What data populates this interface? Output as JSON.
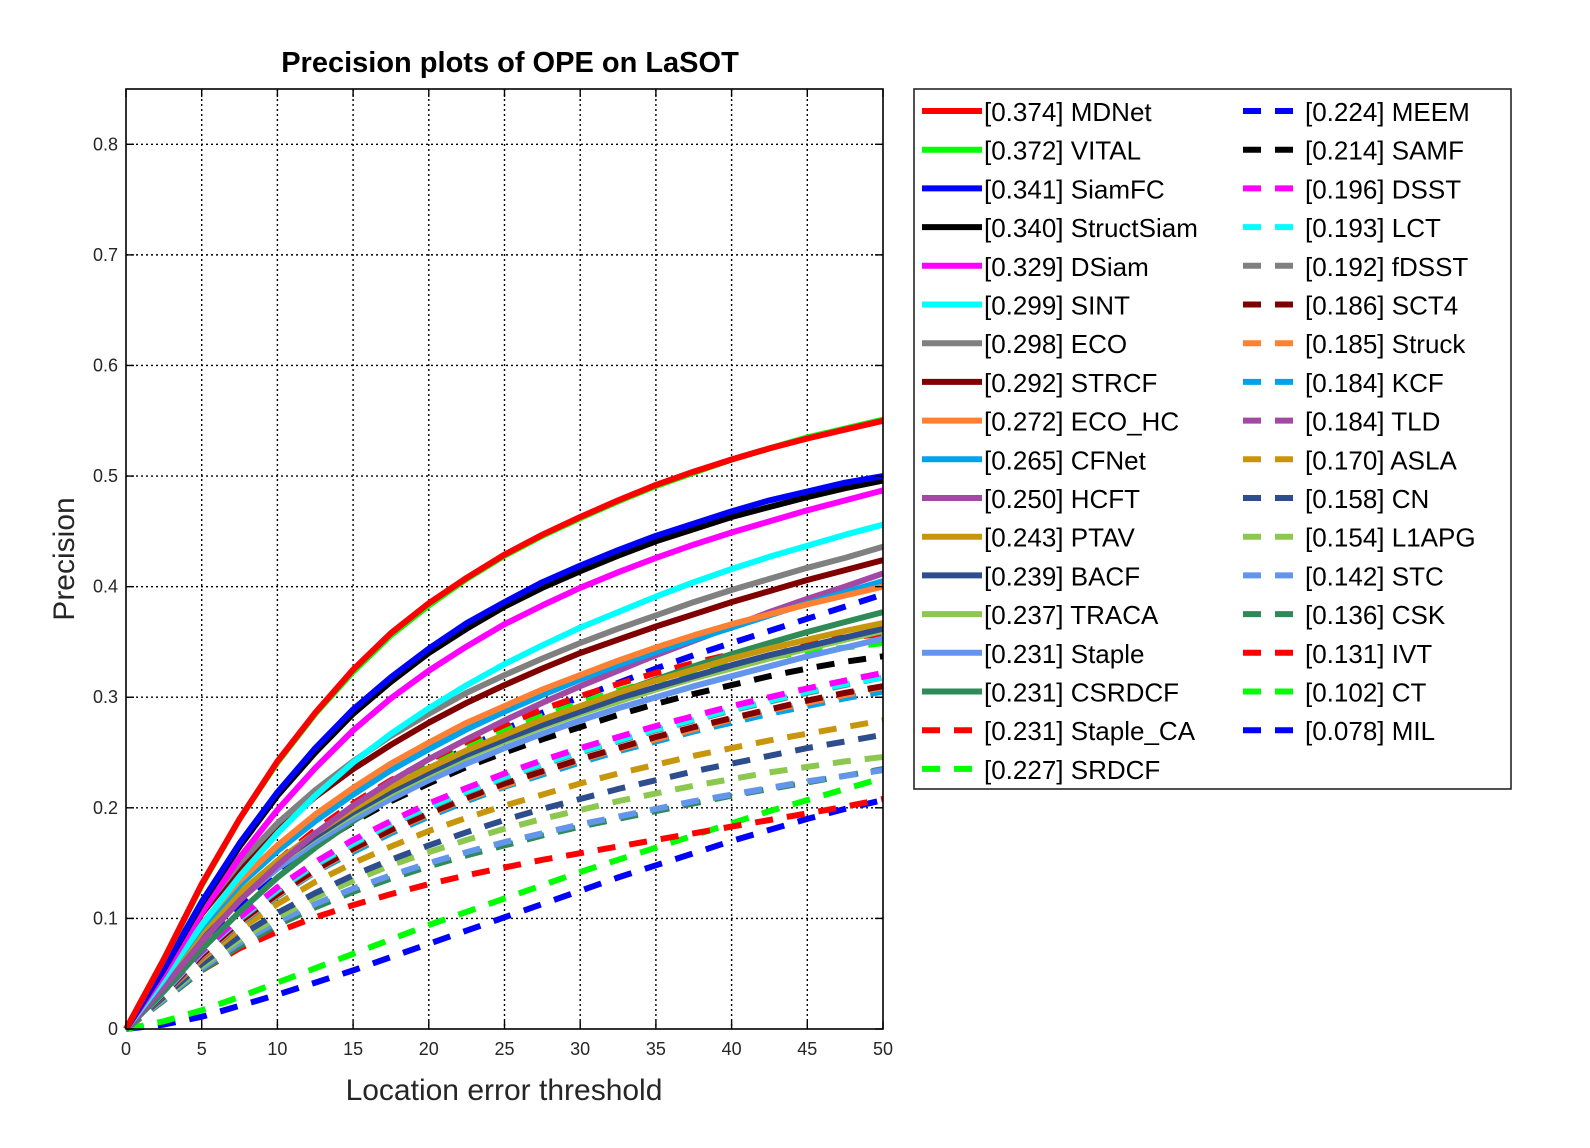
{
  "chart_data": {
    "type": "line",
    "title": "Precision plots of OPE on LaSOT",
    "xlabel": "Location error threshold",
    "ylabel": "Precision",
    "xlim": [
      0,
      50
    ],
    "ylim": [
      0,
      0.85
    ],
    "xticks": [
      "0",
      "5",
      "10",
      "15",
      "20",
      "25",
      "30",
      "35",
      "40",
      "45",
      "50"
    ],
    "yticks": [
      "0",
      "0.1",
      "0.2",
      "0.3",
      "0.4",
      "0.5",
      "0.6",
      "0.7",
      "0.8"
    ],
    "grid": true,
    "legend_placement": "outside-right",
    "x": [
      0,
      2.5,
      5,
      7.5,
      10,
      12.5,
      15,
      17.5,
      20,
      22.5,
      25,
      27.5,
      30,
      32.5,
      35,
      37.5,
      40,
      42.5,
      45,
      47.5,
      50
    ],
    "series": [
      {
        "name": "[0.374] MDNet",
        "color": "#ff0000",
        "dash": "solid",
        "values": [
          0,
          0.063,
          0.131,
          0.19,
          0.242,
          0.286,
          0.325,
          0.358,
          0.385,
          0.408,
          0.429,
          0.447,
          0.463,
          0.478,
          0.492,
          0.504,
          0.515,
          0.525,
          0.534,
          0.542,
          0.55
        ]
      },
      {
        "name": "[0.372] VITAL",
        "color": "#00ff00",
        "dash": "solid",
        "values": [
          0,
          0.063,
          0.13,
          0.19,
          0.241,
          0.285,
          0.323,
          0.356,
          0.383,
          0.407,
          0.428,
          0.446,
          0.462,
          0.477,
          0.491,
          0.503,
          0.515,
          0.525,
          0.535,
          0.543,
          0.551
        ]
      },
      {
        "name": "[0.341] SiamFC",
        "color": "#0000ff",
        "dash": "solid",
        "values": [
          0,
          0.055,
          0.115,
          0.168,
          0.214,
          0.254,
          0.289,
          0.318,
          0.344,
          0.367,
          0.386,
          0.404,
          0.419,
          0.433,
          0.446,
          0.457,
          0.468,
          0.478,
          0.486,
          0.494,
          0.5
        ]
      },
      {
        "name": "[0.340] StructSiam",
        "color": "#000000",
        "dash": "solid",
        "values": [
          0,
          0.054,
          0.113,
          0.165,
          0.211,
          0.25,
          0.285,
          0.314,
          0.34,
          0.362,
          0.382,
          0.399,
          0.414,
          0.428,
          0.441,
          0.452,
          0.463,
          0.472,
          0.481,
          0.489,
          0.496
        ]
      },
      {
        "name": "[0.329] DSiam",
        "color": "#ff00ff",
        "dash": "solid",
        "values": [
          0,
          0.05,
          0.105,
          0.155,
          0.198,
          0.236,
          0.27,
          0.299,
          0.324,
          0.346,
          0.366,
          0.383,
          0.399,
          0.413,
          0.426,
          0.438,
          0.449,
          0.459,
          0.469,
          0.478,
          0.487
        ]
      },
      {
        "name": "[0.299] SINT",
        "color": "#00ffff",
        "dash": "solid",
        "values": [
          0,
          0.045,
          0.094,
          0.138,
          0.177,
          0.211,
          0.241,
          0.267,
          0.29,
          0.311,
          0.33,
          0.347,
          0.363,
          0.377,
          0.391,
          0.404,
          0.416,
          0.427,
          0.437,
          0.447,
          0.456
        ]
      },
      {
        "name": "[0.298] ECO",
        "color": "#808080",
        "dash": "solid",
        "values": [
          0,
          0.053,
          0.107,
          0.15,
          0.186,
          0.216,
          0.242,
          0.265,
          0.285,
          0.304,
          0.32,
          0.335,
          0.349,
          0.362,
          0.374,
          0.386,
          0.397,
          0.407,
          0.417,
          0.426,
          0.436
        ]
      },
      {
        "name": "[0.292] STRCF",
        "color": "#800000",
        "dash": "solid",
        "values": [
          0,
          0.052,
          0.104,
          0.146,
          0.181,
          0.21,
          0.235,
          0.257,
          0.277,
          0.295,
          0.311,
          0.326,
          0.34,
          0.352,
          0.364,
          0.375,
          0.386,
          0.396,
          0.406,
          0.415,
          0.424
        ]
      },
      {
        "name": "[0.272] ECO_HC",
        "color": "#ff8033",
        "dash": "solid",
        "values": [
          0,
          0.047,
          0.095,
          0.134,
          0.166,
          0.194,
          0.218,
          0.24,
          0.259,
          0.277,
          0.292,
          0.307,
          0.32,
          0.333,
          0.345,
          0.356,
          0.366,
          0.375,
          0.384,
          0.392,
          0.4
        ]
      },
      {
        "name": "[0.265] CFNet",
        "color": "#00a2e8",
        "dash": "solid",
        "values": [
          0,
          0.046,
          0.092,
          0.13,
          0.161,
          0.188,
          0.212,
          0.234,
          0.253,
          0.271,
          0.287,
          0.302,
          0.316,
          0.329,
          0.341,
          0.352,
          0.363,
          0.374,
          0.385,
          0.395,
          0.405
        ]
      },
      {
        "name": "[0.250] HCFT",
        "color": "#a349a4",
        "dash": "solid",
        "values": [
          0,
          0.038,
          0.079,
          0.116,
          0.148,
          0.177,
          0.202,
          0.224,
          0.244,
          0.262,
          0.279,
          0.295,
          0.31,
          0.324,
          0.338,
          0.351,
          0.364,
          0.377,
          0.389,
          0.4,
          0.412
        ]
      },
      {
        "name": "[0.243] PTAV",
        "color": "#c8960a",
        "dash": "solid",
        "values": [
          0,
          0.044,
          0.088,
          0.123,
          0.152,
          0.177,
          0.199,
          0.219,
          0.236,
          0.252,
          0.266,
          0.28,
          0.292,
          0.304,
          0.315,
          0.325,
          0.335,
          0.344,
          0.352,
          0.36,
          0.367
        ]
      },
      {
        "name": "[0.239] BACF",
        "color": "#2d4d8c",
        "dash": "solid",
        "values": [
          0,
          0.043,
          0.087,
          0.121,
          0.15,
          0.174,
          0.196,
          0.215,
          0.232,
          0.248,
          0.262,
          0.275,
          0.287,
          0.299,
          0.309,
          0.319,
          0.329,
          0.338,
          0.346,
          0.354,
          0.362
        ]
      },
      {
        "name": "[0.237] TRACA",
        "color": "#8cc850",
        "dash": "solid",
        "values": [
          0,
          0.043,
          0.086,
          0.12,
          0.149,
          0.173,
          0.194,
          0.213,
          0.23,
          0.246,
          0.26,
          0.273,
          0.285,
          0.296,
          0.307,
          0.317,
          0.326,
          0.335,
          0.344,
          0.352,
          0.36
        ]
      },
      {
        "name": "[0.231] Staple",
        "color": "#6495ed",
        "dash": "solid",
        "values": [
          0,
          0.041,
          0.083,
          0.117,
          0.145,
          0.169,
          0.19,
          0.208,
          0.225,
          0.24,
          0.254,
          0.267,
          0.279,
          0.29,
          0.3,
          0.31,
          0.319,
          0.328,
          0.337,
          0.345,
          0.353
        ]
      },
      {
        "name": "[0.231] CSRDCF",
        "color": "#2e8b57",
        "dash": "solid",
        "values": [
          0,
          0.034,
          0.072,
          0.106,
          0.137,
          0.164,
          0.188,
          0.209,
          0.228,
          0.246,
          0.262,
          0.277,
          0.291,
          0.304,
          0.316,
          0.328,
          0.339,
          0.349,
          0.359,
          0.368,
          0.377
        ]
      },
      {
        "name": "[0.231] Staple_CA",
        "color": "#ff0000",
        "dash": "dashed",
        "values": [
          0,
          0.039,
          0.082,
          0.12,
          0.152,
          0.18,
          0.204,
          0.225,
          0.243,
          0.26,
          0.275,
          0.289,
          0.301,
          0.312,
          0.322,
          0.331,
          0.339,
          0.345,
          0.35,
          0.354,
          0.357
        ]
      },
      {
        "name": "[0.227] SRDCF",
        "color": "#00ff00",
        "dash": "dashed",
        "values": [
          0,
          0.039,
          0.081,
          0.118,
          0.15,
          0.177,
          0.2,
          0.221,
          0.239,
          0.255,
          0.27,
          0.283,
          0.295,
          0.306,
          0.315,
          0.323,
          0.33,
          0.336,
          0.341,
          0.345,
          0.349
        ]
      },
      {
        "name": "[0.224] MEEM",
        "color": "#0000ff",
        "dash": "dashed",
        "values": [
          0,
          0.035,
          0.074,
          0.11,
          0.141,
          0.169,
          0.194,
          0.216,
          0.236,
          0.254,
          0.271,
          0.286,
          0.3,
          0.313,
          0.326,
          0.338,
          0.349,
          0.36,
          0.371,
          0.382,
          0.393
        ]
      },
      {
        "name": "[0.214] SAMF",
        "color": "#000000",
        "dash": "dashed",
        "values": [
          0,
          0.037,
          0.077,
          0.112,
          0.141,
          0.166,
          0.187,
          0.206,
          0.222,
          0.237,
          0.25,
          0.262,
          0.273,
          0.284,
          0.294,
          0.303,
          0.311,
          0.319,
          0.326,
          0.332,
          0.337
        ]
      },
      {
        "name": "[0.196] DSST",
        "color": "#ff00ff",
        "dash": "dashed",
        "values": [
          0,
          0.034,
          0.07,
          0.101,
          0.128,
          0.151,
          0.171,
          0.188,
          0.204,
          0.218,
          0.231,
          0.243,
          0.254,
          0.264,
          0.274,
          0.283,
          0.292,
          0.3,
          0.308,
          0.315,
          0.322
        ]
      },
      {
        "name": "[0.193] LCT",
        "color": "#00ffff",
        "dash": "dashed",
        "values": [
          0,
          0.033,
          0.069,
          0.1,
          0.126,
          0.149,
          0.168,
          0.186,
          0.201,
          0.215,
          0.228,
          0.24,
          0.251,
          0.261,
          0.271,
          0.28,
          0.289,
          0.297,
          0.305,
          0.312,
          0.318
        ]
      },
      {
        "name": "[0.192] fDSST",
        "color": "#808080",
        "dash": "dashed",
        "values": [
          0,
          0.033,
          0.069,
          0.099,
          0.125,
          0.148,
          0.167,
          0.185,
          0.2,
          0.214,
          0.227,
          0.239,
          0.25,
          0.26,
          0.27,
          0.279,
          0.288,
          0.296,
          0.304,
          0.311,
          0.318
        ]
      },
      {
        "name": "[0.186] SCT4",
        "color": "#800000",
        "dash": "dashed",
        "values": [
          0,
          0.032,
          0.067,
          0.097,
          0.122,
          0.144,
          0.163,
          0.18,
          0.195,
          0.209,
          0.222,
          0.233,
          0.244,
          0.254,
          0.264,
          0.273,
          0.281,
          0.289,
          0.297,
          0.304,
          0.31
        ]
      },
      {
        "name": "[0.185] Struck",
        "color": "#ff8033",
        "dash": "dashed",
        "values": [
          0,
          0.032,
          0.066,
          0.096,
          0.121,
          0.143,
          0.162,
          0.179,
          0.194,
          0.208,
          0.22,
          0.232,
          0.243,
          0.253,
          0.262,
          0.271,
          0.28,
          0.288,
          0.295,
          0.302,
          0.309
        ]
      },
      {
        "name": "[0.184] KCF",
        "color": "#00a2e8",
        "dash": "dashed",
        "values": [
          0,
          0.032,
          0.066,
          0.095,
          0.12,
          0.142,
          0.16,
          0.177,
          0.192,
          0.206,
          0.219,
          0.23,
          0.241,
          0.251,
          0.26,
          0.269,
          0.277,
          0.285,
          0.292,
          0.299,
          0.305
        ]
      },
      {
        "name": "[0.184] TLD",
        "color": "#a349a4",
        "dash": "dashed",
        "values": [
          0,
          0.031,
          0.065,
          0.095,
          0.12,
          0.142,
          0.161,
          0.178,
          0.193,
          0.207,
          0.22,
          0.232,
          0.243,
          0.253,
          0.262,
          0.271,
          0.28,
          0.288,
          0.295,
          0.302,
          0.309
        ]
      },
      {
        "name": "[0.170] ASLA",
        "color": "#c8960a",
        "dash": "dashed",
        "values": [
          0,
          0.031,
          0.063,
          0.09,
          0.113,
          0.133,
          0.15,
          0.165,
          0.179,
          0.191,
          0.202,
          0.212,
          0.222,
          0.231,
          0.239,
          0.247,
          0.254,
          0.261,
          0.267,
          0.273,
          0.279
        ]
      },
      {
        "name": "[0.158] CN",
        "color": "#2d4d8c",
        "dash": "dashed",
        "values": [
          0,
          0.029,
          0.059,
          0.084,
          0.105,
          0.123,
          0.139,
          0.153,
          0.166,
          0.178,
          0.189,
          0.199,
          0.208,
          0.217,
          0.225,
          0.233,
          0.24,
          0.247,
          0.254,
          0.26,
          0.266
        ]
      },
      {
        "name": "[0.154] L1APG",
        "color": "#8cc850",
        "dash": "dashed",
        "values": [
          0,
          0.028,
          0.057,
          0.081,
          0.101,
          0.119,
          0.134,
          0.148,
          0.16,
          0.171,
          0.181,
          0.19,
          0.198,
          0.206,
          0.213,
          0.22,
          0.226,
          0.232,
          0.237,
          0.242,
          0.246
        ]
      },
      {
        "name": "[0.142] STC",
        "color": "#6495ed",
        "dash": "dashed",
        "values": [
          0,
          0.027,
          0.055,
          0.078,
          0.097,
          0.113,
          0.127,
          0.139,
          0.15,
          0.16,
          0.169,
          0.177,
          0.185,
          0.192,
          0.199,
          0.206,
          0.212,
          0.218,
          0.224,
          0.229,
          0.234
        ]
      },
      {
        "name": "[0.136] CSK",
        "color": "#2e8b57",
        "dash": "dashed",
        "values": [
          0,
          0.026,
          0.053,
          0.075,
          0.094,
          0.11,
          0.124,
          0.136,
          0.147,
          0.157,
          0.166,
          0.175,
          0.183,
          0.19,
          0.197,
          0.204,
          0.211,
          0.217,
          0.223,
          0.229,
          0.235
        ]
      },
      {
        "name": "[0.131] IVT",
        "color": "#ff0000",
        "dash": "dashed",
        "values": [
          0,
          0.026,
          0.053,
          0.073,
          0.088,
          0.101,
          0.112,
          0.122,
          0.131,
          0.139,
          0.146,
          0.153,
          0.159,
          0.165,
          0.171,
          0.177,
          0.183,
          0.189,
          0.195,
          0.201,
          0.208
        ]
      },
      {
        "name": "[0.102] CT",
        "color": "#00ff00",
        "dash": "dashed",
        "values": [
          0,
          0.007,
          0.017,
          0.029,
          0.042,
          0.055,
          0.068,
          0.081,
          0.094,
          0.106,
          0.118,
          0.13,
          0.142,
          0.153,
          0.164,
          0.175,
          0.186,
          0.197,
          0.207,
          0.217,
          0.227
        ]
      },
      {
        "name": "[0.078] MIL",
        "color": "#0000ff",
        "dash": "dashed",
        "values": [
          0,
          0.004,
          0.011,
          0.021,
          0.031,
          0.042,
          0.053,
          0.065,
          0.077,
          0.089,
          0.101,
          0.113,
          0.125,
          0.137,
          0.148,
          0.159,
          0.17,
          0.18,
          0.19,
          0.199,
          0.207
        ]
      }
    ]
  }
}
